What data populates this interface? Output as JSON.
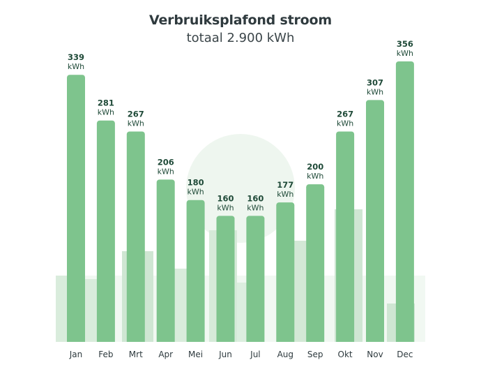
{
  "chart_data": {
    "type": "bar",
    "title": "Verbruiksplafond stroom",
    "subtitle": "totaal 2.900 kWh",
    "unit": "kWh",
    "categories": [
      "Jan",
      "Feb",
      "Mrt",
      "Apr",
      "Mei",
      "Jun",
      "Jul",
      "Aug",
      "Sep",
      "Okt",
      "Nov",
      "Dec"
    ],
    "values": [
      339,
      281,
      267,
      206,
      180,
      160,
      160,
      177,
      200,
      267,
      307,
      356
    ],
    "value_labels": [
      "339",
      "281",
      "267",
      "206",
      "180",
      "160",
      "160",
      "177",
      "200",
      "267",
      "307",
      "356"
    ],
    "ylim": [
      0,
      356
    ],
    "grid": false,
    "legend": "none",
    "bar_color": "#7ec48d"
  }
}
